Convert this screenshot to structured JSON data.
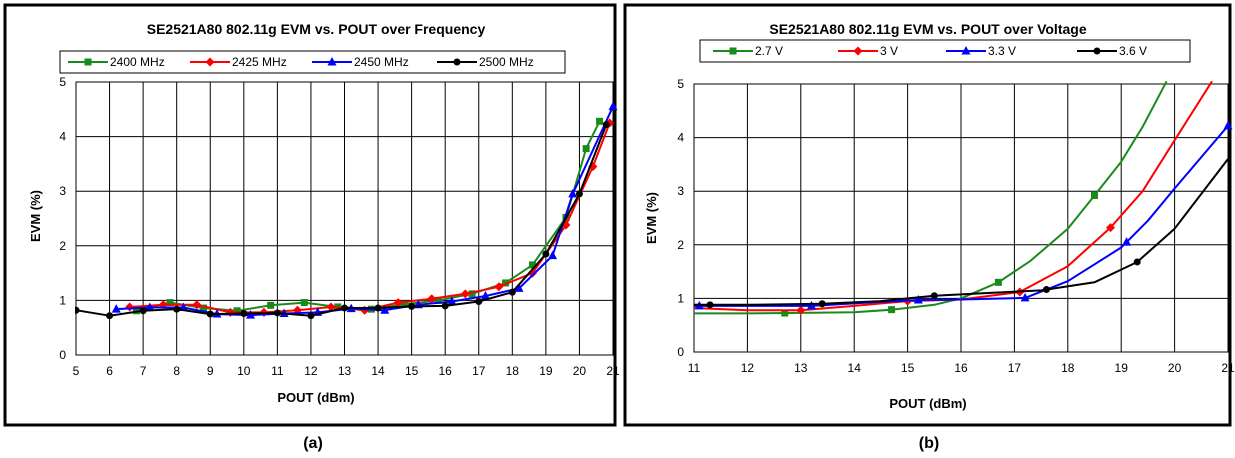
{
  "colors": {
    "green": "#1a8a1a",
    "red": "#ff0000",
    "blue": "#0000ff",
    "black": "#000000"
  },
  "chart_data": [
    {
      "type": "line",
      "title": "SE2521A80 802.11g EVM vs. POUT over Frequency",
      "xlabel": "POUT (dBm)",
      "ylabel": "EVM (%)",
      "caption": "(a)",
      "xlim": [
        5,
        21
      ],
      "ylim": [
        0,
        5
      ],
      "x_ticks": [
        "5",
        "6",
        "7",
        "8",
        "9",
        "10",
        "11",
        "12",
        "13",
        "14",
        "15",
        "16",
        "17",
        "18",
        "19",
        "20",
        "21"
      ],
      "y_ticks": [
        "0",
        "1",
        "2",
        "3",
        "4",
        "5"
      ],
      "grid": true,
      "legend_position": "top",
      "series": [
        {
          "name": "2400 MHz",
          "color": "#1a8a1a",
          "marker": "square",
          "x": [
            6.8,
            7.8,
            8.8,
            9.8,
            10.8,
            11.8,
            12.8,
            13.8,
            14.8,
            15.8,
            16.8,
            17.8,
            18.6,
            19.6,
            20.2,
            20.6
          ],
          "y": [
            0.81,
            0.96,
            0.86,
            0.81,
            0.91,
            0.96,
            0.88,
            0.84,
            0.93,
            1.0,
            1.12,
            1.32,
            1.65,
            2.52,
            3.78,
            4.28
          ]
        },
        {
          "name": "2425 MHz",
          "color": "#ff0000",
          "marker": "diamond",
          "x": [
            6.6,
            7.6,
            8.6,
            9.6,
            10.6,
            11.6,
            12.6,
            13.6,
            14.6,
            15.6,
            16.6,
            17.6,
            18.6,
            19.6,
            20.4,
            20.9
          ],
          "y": [
            0.88,
            0.92,
            0.92,
            0.78,
            0.78,
            0.82,
            0.88,
            0.82,
            0.96,
            1.03,
            1.12,
            1.25,
            1.5,
            2.38,
            3.45,
            4.25
          ]
        },
        {
          "name": "2450 MHz",
          "color": "#0000ff",
          "marker": "triangle",
          "x": [
            6.2,
            7.2,
            8.2,
            9.2,
            10.2,
            11.2,
            12.2,
            13.2,
            14.2,
            15.2,
            16.2,
            17.2,
            18.2,
            19.2,
            19.8,
            21.0
          ],
          "y": [
            0.84,
            0.87,
            0.87,
            0.75,
            0.73,
            0.76,
            0.78,
            0.85,
            0.82,
            0.92,
            0.98,
            1.08,
            1.22,
            1.82,
            2.95,
            4.55
          ]
        },
        {
          "name": "2500 MHz",
          "color": "#000000",
          "marker": "circle",
          "x": [
            5.0,
            6.0,
            7.0,
            8.0,
            9.0,
            10.0,
            11.0,
            12.0,
            13.0,
            14.0,
            15.0,
            16.0,
            17.0,
            18.0,
            19.0,
            20.0,
            20.8
          ],
          "y": [
            0.82,
            0.72,
            0.81,
            0.84,
            0.75,
            0.76,
            0.77,
            0.72,
            0.86,
            0.86,
            0.89,
            0.9,
            0.98,
            1.15,
            1.85,
            2.95,
            4.22
          ]
        }
      ]
    },
    {
      "type": "line",
      "title": "SE2521A80 802.11g EVM vs. POUT over Voltage",
      "xlabel": "POUT (dBm)",
      "ylabel": "EVM (%)",
      "caption": "(b)",
      "xlim": [
        11,
        21
      ],
      "ylim": [
        0,
        5
      ],
      "x_ticks": [
        "11",
        "12",
        "13",
        "14",
        "15",
        "16",
        "17",
        "18",
        "19",
        "20",
        "21"
      ],
      "y_ticks": [
        "0",
        "1",
        "2",
        "3",
        "4",
        "5"
      ],
      "grid": true,
      "legend_position": "top",
      "series": [
        {
          "name": "2.7 V",
          "color": "#1a8a1a",
          "marker": "square",
          "x": [
            11.0,
            12.0,
            13.0,
            14.0,
            14.7,
            15.5,
            16.0,
            16.7,
            17.3,
            18.0,
            18.5,
            19.0,
            19.4,
            19.85
          ],
          "y": [
            0.72,
            0.72,
            0.73,
            0.74,
            0.79,
            0.88,
            1.0,
            1.3,
            1.7,
            2.3,
            2.92,
            3.55,
            4.2,
            5.05
          ],
          "markers_at": [
            12.7,
            14.7,
            16.7,
            18.5
          ]
        },
        {
          "name": "3 V",
          "color": "#ff0000",
          "marker": "diamond",
          "x": [
            11.0,
            12.0,
            13.0,
            14.0,
            15.0,
            16.0,
            17.1,
            18.0,
            18.8,
            19.4,
            20.0,
            20.7
          ],
          "y": [
            0.82,
            0.78,
            0.78,
            0.86,
            0.95,
            0.98,
            1.12,
            1.6,
            2.32,
            3.0,
            3.95,
            5.05
          ],
          "markers_at": [
            13.0,
            15.0,
            17.1,
            18.8
          ]
        },
        {
          "name": "3.3 V",
          "color": "#0000ff",
          "marker": "triangle",
          "x": [
            11.0,
            12.0,
            13.2,
            14.2,
            15.2,
            16.0,
            17.2,
            18.0,
            19.0,
            19.5,
            20.0,
            21.0
          ],
          "y": [
            0.86,
            0.86,
            0.86,
            0.92,
            0.97,
            0.98,
            1.01,
            1.32,
            1.95,
            2.45,
            3.05,
            4.22
          ],
          "markers_at": [
            11.1,
            13.2,
            15.2,
            17.2,
            19.1,
            21.0
          ]
        },
        {
          "name": "3.6 V",
          "color": "#000000",
          "marker": "circle",
          "x": [
            11.0,
            12.0,
            13.4,
            14.5,
            15.5,
            16.5,
            17.5,
            18.5,
            19.3,
            20.0,
            20.5,
            21.0
          ],
          "y": [
            0.88,
            0.88,
            0.9,
            0.95,
            1.05,
            1.1,
            1.15,
            1.3,
            1.68,
            2.3,
            2.95,
            3.6
          ],
          "markers_at": [
            11.3,
            13.4,
            15.5,
            17.6,
            19.3
          ]
        }
      ]
    }
  ]
}
